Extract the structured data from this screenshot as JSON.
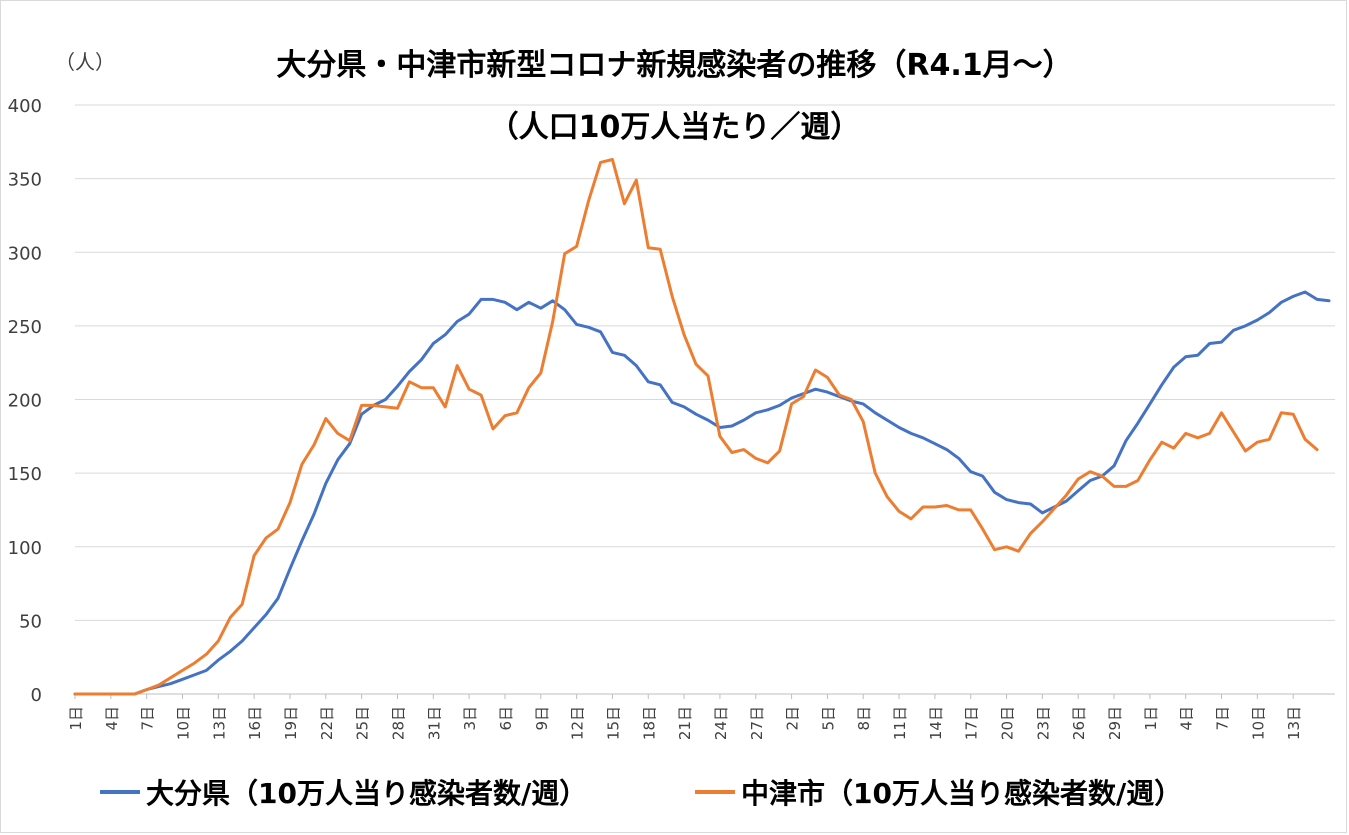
{
  "unit_label": "（人）",
  "colors": {
    "oita": "#4472C4",
    "nakatsu": "#ED7D31",
    "grid": "#d9d9d9"
  },
  "chart_data": {
    "type": "line",
    "title": "大分県・中津市新型コロナ新規感染者の推移（R4.1月～）",
    "subtitle": "（人口10万人当たり／週）",
    "ylim": [
      0,
      400
    ],
    "yticks": [
      0,
      50,
      100,
      150,
      200,
      250,
      300,
      350,
      400
    ],
    "grid": true,
    "legend_position": "bottom",
    "x_tick_labels": [
      "1日",
      "4日",
      "7日",
      "10日",
      "13日",
      "16日",
      "19日",
      "22日",
      "25日",
      "28日",
      "31日",
      "3日",
      "6日",
      "9日",
      "12日",
      "15日",
      "18日",
      "21日",
      "24日",
      "27日",
      "2日",
      "5日",
      "8日",
      "11日",
      "14日",
      "17日",
      "20日",
      "23日",
      "26日",
      "29日",
      "1日",
      "4日",
      "7日",
      "10日",
      "13日"
    ],
    "series": [
      {
        "name": "大分県（10万人当り感染者数/週）",
        "values": [
          0,
          0,
          0,
          0,
          0,
          0,
          3,
          5,
          7,
          10,
          13,
          16,
          23,
          29,
          36,
          45,
          54,
          65,
          85,
          104,
          122,
          143,
          159,
          170,
          190,
          196,
          200,
          209,
          219,
          227,
          238,
          244,
          253,
          258,
          268,
          268,
          266,
          261,
          266,
          262,
          267,
          261,
          251,
          249,
          246,
          232,
          230,
          223,
          212,
          210,
          198,
          195,
          190,
          186,
          181,
          182,
          186,
          191,
          193,
          196,
          201,
          204,
          207,
          205,
          202,
          199,
          197,
          191,
          186,
          181,
          177,
          174,
          170,
          166,
          160,
          151,
          148,
          137,
          132,
          130,
          129,
          123,
          127,
          131,
          138,
          145,
          148,
          155,
          172,
          184,
          197,
          210,
          222,
          229,
          230,
          238,
          239,
          247,
          250,
          254,
          259,
          266,
          270,
          273,
          268,
          267
        ]
      },
      {
        "name": "中津市（10万人当り感染者数/週）",
        "values": [
          0,
          0,
          0,
          0,
          0,
          0,
          3,
          6,
          11,
          16,
          21,
          27,
          36,
          52,
          61,
          94,
          106,
          112,
          130,
          156,
          169,
          187,
          177,
          172,
          196,
          196,
          195,
          194,
          212,
          208,
          208,
          195,
          223,
          207,
          203,
          180,
          189,
          191,
          208,
          218,
          253,
          299,
          304,
          335,
          361,
          363,
          333,
          349,
          303,
          302,
          270,
          244,
          224,
          216,
          175,
          164,
          166,
          160,
          157,
          165,
          197,
          202,
          220,
          215,
          203,
          200,
          185,
          150,
          134,
          124,
          119,
          127,
          127,
          128,
          125,
          125,
          112,
          98,
          100,
          97,
          109,
          117,
          126,
          135,
          146,
          151,
          148,
          141,
          141,
          145,
          159,
          171,
          167,
          177,
          174,
          177,
          191,
          178,
          165,
          171,
          173,
          191,
          190,
          173,
          166
        ]
      }
    ]
  }
}
